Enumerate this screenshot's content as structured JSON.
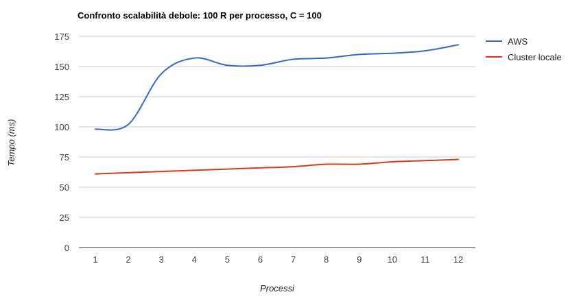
{
  "chart_data": {
    "type": "line",
    "title": "Confronto scalabilità debole: 100 R per processo, C = 100",
    "xlabel": "Processi",
    "ylabel": "Tempo (ms)",
    "x": [
      "1",
      "2",
      "3",
      "4",
      "5",
      "6",
      "7",
      "8",
      "9",
      "10",
      "11",
      "12"
    ],
    "ylim": [
      0,
      175
    ],
    "yticks": [
      "0",
      "25",
      "50",
      "75",
      "100",
      "125",
      "150",
      "175"
    ],
    "grid": true,
    "legend_position": "right",
    "series": [
      {
        "name": "AWS",
        "color": "#3366cc",
        "values": [
          98,
          102,
          144,
          157,
          151,
          151,
          156,
          157,
          160,
          161,
          163,
          168
        ]
      },
      {
        "name": "Cluster locale",
        "color": "#dc3912",
        "values": [
          61,
          62,
          63,
          64,
          65,
          66,
          67,
          69,
          69,
          71,
          72,
          73
        ]
      }
    ]
  }
}
